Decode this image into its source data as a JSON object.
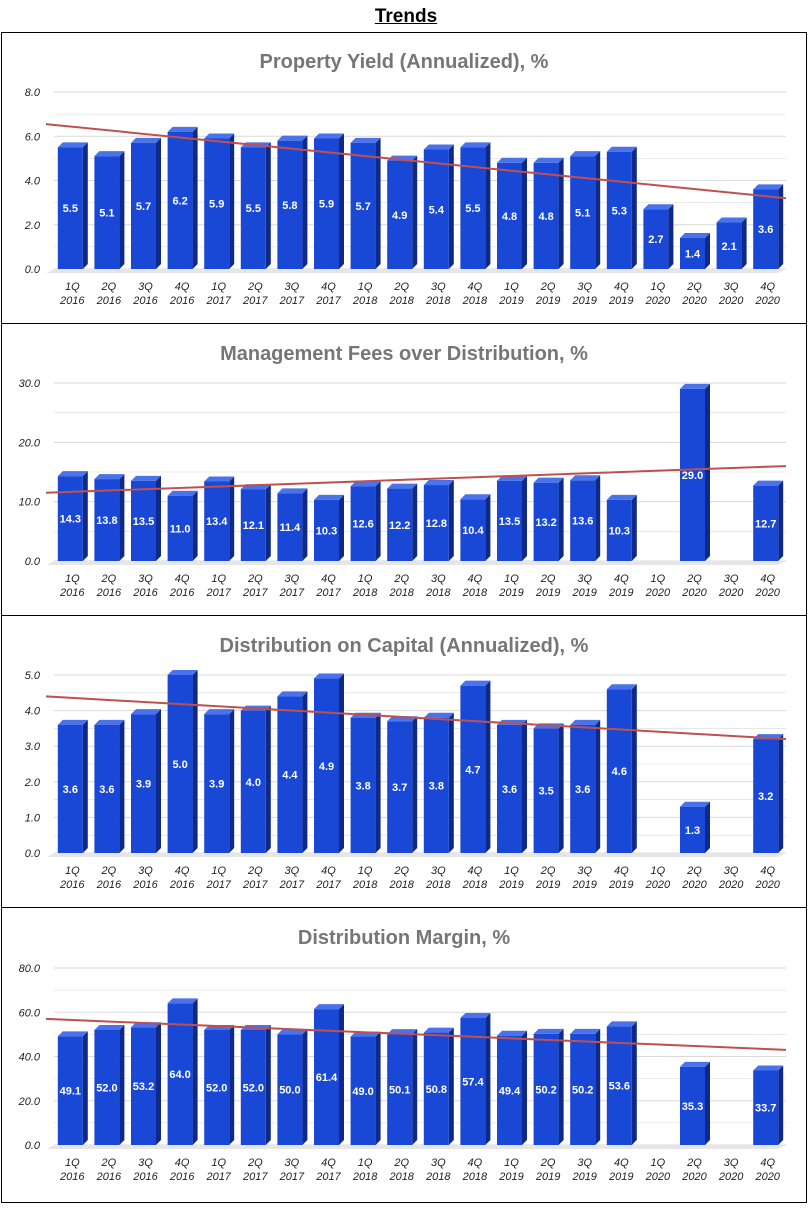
{
  "page_title": "Trends",
  "colors": {
    "bar_front": "#1a48d6",
    "bar_side": "#0e2a86",
    "bar_top": "#4a72ea",
    "trend": "#c0504d",
    "grid": "#d9d9d9"
  },
  "chart_data": [
    {
      "type": "bar",
      "title": "Property Yield (Annualized), %",
      "categories": [
        "1Q 2016",
        "2Q 2016",
        "3Q 2016",
        "4Q 2016",
        "1Q 2017",
        "2Q 2017",
        "3Q 2017",
        "4Q 2017",
        "1Q 2018",
        "2Q 2018",
        "3Q 2018",
        "4Q 2018",
        "1Q 2019",
        "2Q 2019",
        "3Q 2019",
        "4Q 2019",
        "1Q 2020",
        "2Q 2020",
        "3Q 2020",
        "4Q 2020"
      ],
      "values": [
        5.5,
        5.1,
        5.7,
        6.2,
        5.9,
        5.5,
        5.8,
        5.9,
        5.7,
        4.9,
        5.4,
        5.5,
        4.8,
        4.8,
        5.1,
        5.3,
        2.7,
        1.4,
        2.1,
        3.6
      ],
      "value_labels": [
        "5.5",
        "5.1",
        "5.7",
        "6.2",
        "5.9",
        "5.5",
        "5.8",
        "5.9",
        "5.7",
        "4.9",
        "5.4",
        "5.5",
        "4.8",
        "4.8",
        "5.1",
        "5.3",
        "2.7",
        "1.4",
        "2.1",
        "3.6"
      ],
      "y_ticks": [
        "0.0",
        "2.0",
        "4.0",
        "6.0",
        "8.0"
      ],
      "ylim": [
        0,
        8
      ],
      "trendline": {
        "start": 6.55,
        "end": 3.2
      },
      "xlabel": "",
      "ylabel": ""
    },
    {
      "type": "bar",
      "title": "Management Fees over Distribution, %",
      "categories": [
        "1Q 2016",
        "2Q 2016",
        "3Q 2016",
        "4Q 2016",
        "1Q 2017",
        "2Q 2017",
        "3Q 2017",
        "4Q 2017",
        "1Q 2018",
        "2Q 2018",
        "3Q 2018",
        "4Q 2018",
        "1Q 2019",
        "2Q 2019",
        "3Q 2019",
        "4Q 2019",
        "1Q 2020",
        "2Q 2020",
        "3Q 2020",
        "4Q 2020"
      ],
      "values": [
        14.3,
        13.8,
        13.5,
        11.0,
        13.4,
        12.1,
        11.4,
        10.3,
        12.6,
        12.2,
        12.8,
        10.4,
        13.5,
        13.2,
        13.6,
        10.3,
        null,
        29.0,
        null,
        12.7
      ],
      "value_labels": [
        "14.3",
        "13.8",
        "13.5",
        "11.0",
        "13.4",
        "12.1",
        "11.4",
        "10.3",
        "12.6",
        "12.2",
        "12.8",
        "10.4",
        "13.5",
        "13.2",
        "13.6",
        "10.3",
        "",
        "29.0",
        "",
        "12.7"
      ],
      "y_ticks": [
        "0.0",
        "10.0",
        "20.0",
        "30.0"
      ],
      "ylim": [
        0,
        30
      ],
      "trendline": {
        "start": 11.5,
        "end": 16.0
      },
      "xlabel": "",
      "ylabel": ""
    },
    {
      "type": "bar",
      "title": "Distribution on Capital (Annualized), %",
      "categories": [
        "1Q 2016",
        "2Q 2016",
        "3Q 2016",
        "4Q 2016",
        "1Q 2017",
        "2Q 2017",
        "3Q 2017",
        "4Q 2017",
        "1Q 2018",
        "2Q 2018",
        "3Q 2018",
        "4Q 2018",
        "1Q 2019",
        "2Q 2019",
        "3Q 2019",
        "4Q 2019",
        "1Q 2020",
        "2Q 2020",
        "3Q 2020",
        "4Q 2020"
      ],
      "values": [
        3.6,
        3.6,
        3.9,
        5.0,
        3.9,
        4.0,
        4.4,
        4.9,
        3.8,
        3.7,
        3.8,
        4.7,
        3.6,
        3.5,
        3.6,
        4.6,
        null,
        1.3,
        null,
        3.2
      ],
      "value_labels": [
        "3.6",
        "3.6",
        "3.9",
        "5.0",
        "3.9",
        "4.0",
        "4.4",
        "4.9",
        "3.8",
        "3.7",
        "3.8",
        "4.7",
        "3.6",
        "3.5",
        "3.6",
        "4.6",
        "",
        "1.3",
        "",
        "3.2"
      ],
      "y_ticks": [
        "0.0",
        "1.0",
        "2.0",
        "3.0",
        "4.0",
        "5.0"
      ],
      "ylim": [
        0,
        5
      ],
      "trendline": {
        "start": 4.4,
        "end": 3.2
      },
      "xlabel": "",
      "ylabel": ""
    },
    {
      "type": "bar",
      "title": "Distribution Margin, %",
      "categories": [
        "1Q 2016",
        "2Q 2016",
        "3Q 2016",
        "4Q 2016",
        "1Q 2017",
        "2Q 2017",
        "3Q 2017",
        "4Q 2017",
        "1Q 2018",
        "2Q 2018",
        "3Q 2018",
        "4Q 2018",
        "1Q 2019",
        "2Q 2019",
        "3Q 2019",
        "4Q 2019",
        "1Q 2020",
        "2Q 2020",
        "3Q 2020",
        "4Q 2020"
      ],
      "values": [
        49.1,
        52.0,
        53.2,
        64.0,
        52.0,
        52.0,
        50.0,
        61.4,
        49.0,
        50.1,
        50.8,
        57.4,
        49.4,
        50.2,
        50.2,
        53.6,
        null,
        35.3,
        null,
        33.7
      ],
      "value_labels": [
        "49.1",
        "52.0",
        "53.2",
        "64.0",
        "52.0",
        "52.0",
        "50.0",
        "61.4",
        "49.0",
        "50.1",
        "50.8",
        "57.4",
        "49.4",
        "50.2",
        "50.2",
        "53.6",
        "",
        "35.3",
        "",
        "33.7"
      ],
      "y_ticks": [
        "0.0",
        "20.0",
        "40.0",
        "60.0",
        "80.0"
      ],
      "ylim": [
        0,
        80
      ],
      "trendline": {
        "start": 57.0,
        "end": 43.0
      },
      "xlabel": "",
      "ylabel": ""
    }
  ]
}
